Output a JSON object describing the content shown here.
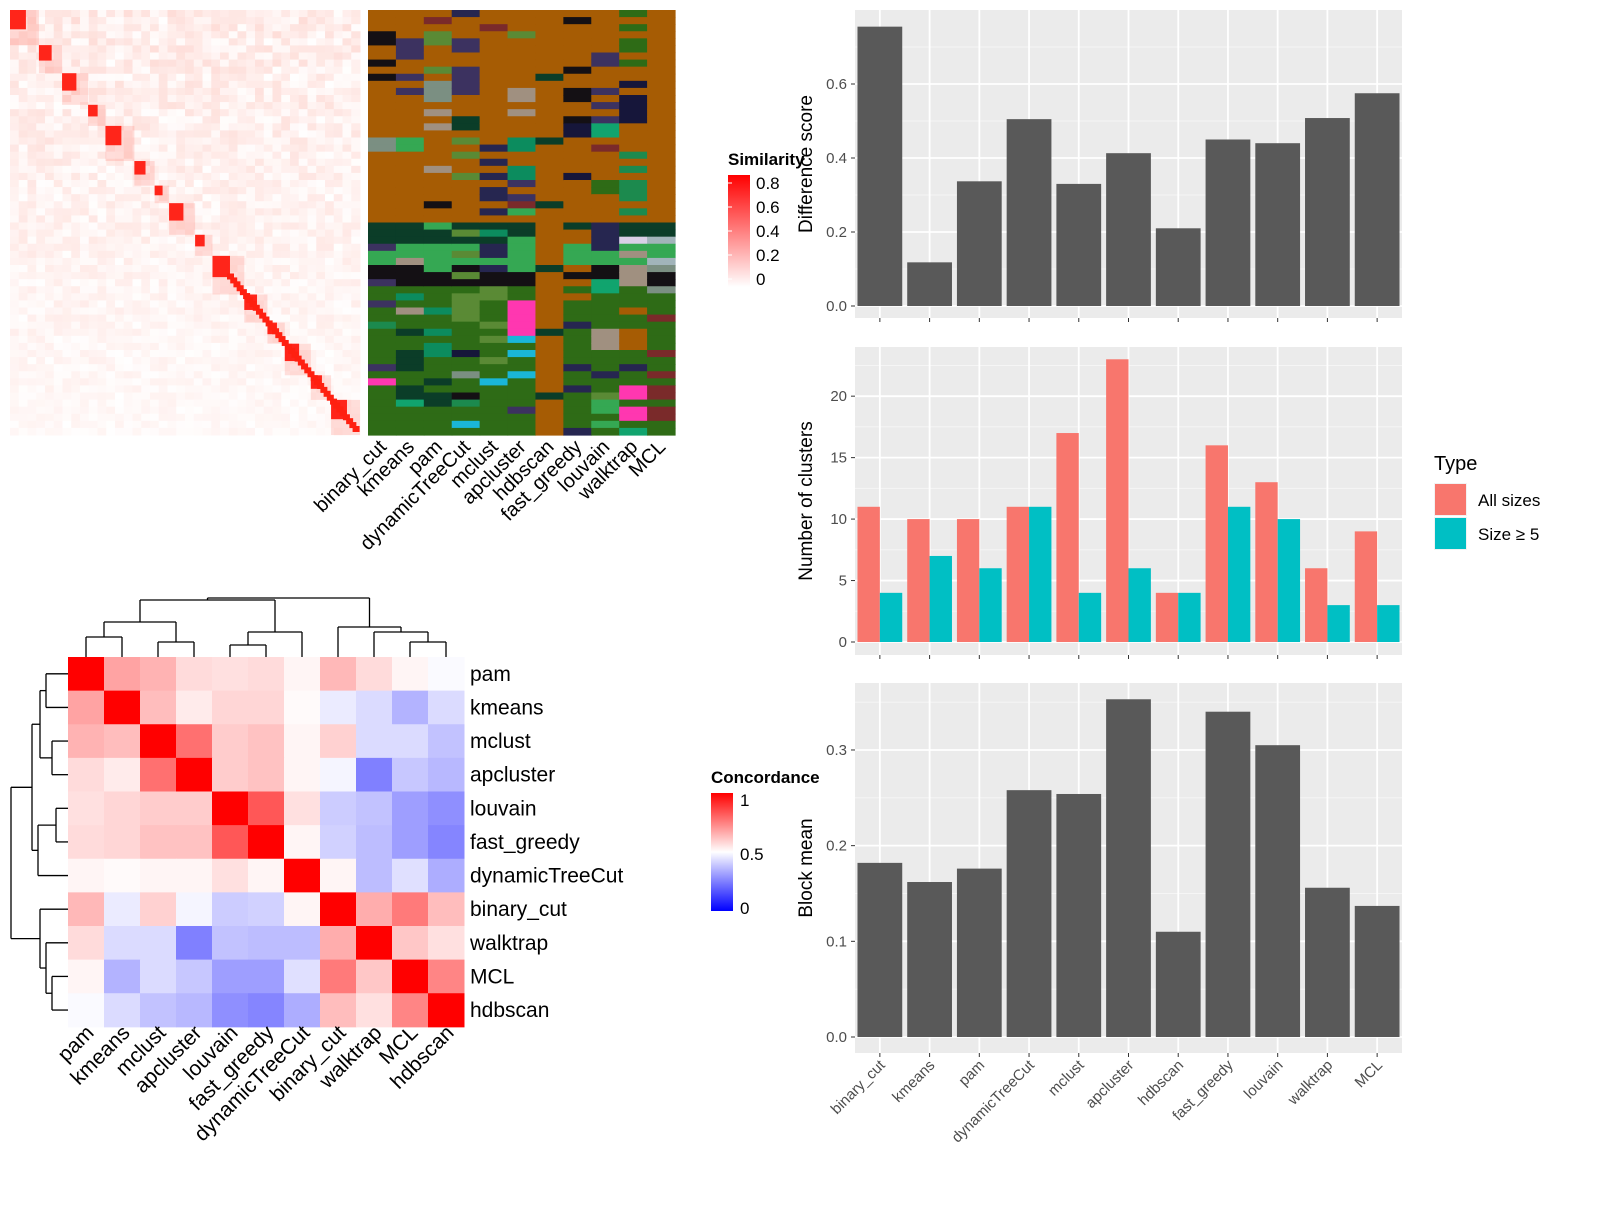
{
  "methods_bar_order": [
    "binary_cut",
    "kmeans",
    "pam",
    "dynamicTreeCut",
    "mclust",
    "apcluster",
    "hdbscan",
    "fast_greedy",
    "louvain",
    "walktrap",
    "MCL"
  ],
  "methods_heat_order": [
    "pam",
    "kmeans",
    "mclust",
    "apcluster",
    "louvain",
    "fast_greedy",
    "dynamicTreeCut",
    "binary_cut",
    "walktrap",
    "MCL",
    "hdbscan"
  ],
  "legend_similarity": {
    "title": "Similarity",
    "ticks": [
      "0.8",
      "0.6",
      "0.4",
      "0.2",
      "0"
    ]
  },
  "legend_concordance": {
    "title": "Concordance",
    "ticks": [
      "1",
      "0.5",
      "0"
    ]
  },
  "legend_type": {
    "title": "Type",
    "entries": [
      "All sizes",
      "Size ≥ 5"
    ],
    "colors": [
      "#F8766D",
      "#00BFC4"
    ]
  },
  "chart_data": [
    {
      "type": "heatmap",
      "title": "",
      "description": "term similarity matrix",
      "n_terms": 120,
      "color_scale": {
        "min": 0,
        "max": 0.8,
        "low": "#ffffff",
        "high": "#ff0000"
      }
    },
    {
      "type": "heatmap",
      "title": "",
      "description": "cluster assignment per method",
      "columns": [
        "binary_cut",
        "kmeans",
        "pam",
        "dynamicTreeCut",
        "mclust",
        "apcluster",
        "hdbscan",
        "fast_greedy",
        "louvain",
        "walktrap",
        "MCL"
      ]
    },
    {
      "type": "heatmap",
      "title": "",
      "rows": [
        "pam",
        "kmeans",
        "mclust",
        "apcluster",
        "louvain",
        "fast_greedy",
        "dynamicTreeCut",
        "binary_cut",
        "walktrap",
        "MCL",
        "hdbscan"
      ],
      "columns": [
        "pam",
        "kmeans",
        "mclust",
        "apcluster",
        "louvain",
        "fast_greedy",
        "dynamicTreeCut",
        "binary_cut",
        "walktrap",
        "MCL",
        "hdbscan"
      ],
      "values": [
        [
          1.0,
          0.68,
          0.65,
          0.57,
          0.56,
          0.57,
          0.52,
          0.64,
          0.57,
          0.52,
          0.49
        ],
        [
          0.68,
          1.0,
          0.63,
          0.54,
          0.58,
          0.58,
          0.51,
          0.46,
          0.43,
          0.35,
          0.43
        ],
        [
          0.65,
          0.63,
          1.0,
          0.78,
          0.6,
          0.62,
          0.52,
          0.59,
          0.43,
          0.43,
          0.38
        ],
        [
          0.57,
          0.54,
          0.78,
          1.0,
          0.6,
          0.62,
          0.52,
          0.48,
          0.25,
          0.39,
          0.36
        ],
        [
          0.56,
          0.58,
          0.6,
          0.6,
          1.0,
          0.83,
          0.56,
          0.4,
          0.38,
          0.31,
          0.28
        ],
        [
          0.57,
          0.58,
          0.62,
          0.62,
          0.83,
          1.0,
          0.52,
          0.41,
          0.37,
          0.31,
          0.26
        ],
        [
          0.52,
          0.51,
          0.52,
          0.52,
          0.56,
          0.52,
          1.0,
          0.52,
          0.37,
          0.44,
          0.34
        ],
        [
          0.64,
          0.46,
          0.59,
          0.48,
          0.4,
          0.41,
          0.52,
          1.0,
          0.66,
          0.76,
          0.63
        ],
        [
          0.57,
          0.43,
          0.43,
          0.25,
          0.38,
          0.37,
          0.37,
          0.66,
          1.0,
          0.61,
          0.56
        ],
        [
          0.52,
          0.35,
          0.43,
          0.39,
          0.31,
          0.31,
          0.44,
          0.76,
          0.61,
          1.0,
          0.74
        ],
        [
          0.49,
          0.43,
          0.38,
          0.36,
          0.28,
          0.26,
          0.34,
          0.63,
          0.56,
          0.74,
          1.0
        ]
      ],
      "color_scale": {
        "min": 0,
        "mid": 0.5,
        "max": 1,
        "low": "#0000ff",
        "midcolor": "#ffffff",
        "high": "#ff0000"
      }
    },
    {
      "type": "bar",
      "categories": [
        "binary_cut",
        "kmeans",
        "pam",
        "dynamicTreeCut",
        "mclust",
        "apcluster",
        "hdbscan",
        "fast_greedy",
        "louvain",
        "walktrap",
        "MCL"
      ],
      "values": [
        0.755,
        0.118,
        0.337,
        0.505,
        0.33,
        0.413,
        0.21,
        0.45,
        0.44,
        0.508,
        0.575
      ],
      "xlabel": "",
      "ylabel": "Difference score",
      "ylim": [
        0,
        0.8
      ],
      "yticks": [
        0.0,
        0.2,
        0.4,
        0.6
      ],
      "grid": true
    },
    {
      "type": "bar",
      "categories": [
        "binary_cut",
        "kmeans",
        "pam",
        "dynamicTreeCut",
        "mclust",
        "apcluster",
        "hdbscan",
        "fast_greedy",
        "louvain",
        "walktrap",
        "MCL"
      ],
      "series": [
        {
          "name": "All sizes",
          "values": [
            11,
            10,
            10,
            11,
            17,
            23,
            4,
            16,
            13,
            6,
            9
          ]
        },
        {
          "name": "Size ≥ 5",
          "values": [
            4,
            7,
            6,
            11,
            4,
            6,
            4,
            11,
            10,
            3,
            3
          ]
        }
      ],
      "xlabel": "",
      "ylabel": "Number of clusters",
      "ylim": [
        0,
        24
      ],
      "yticks": [
        0,
        5,
        10,
        15,
        20
      ],
      "legend": "right",
      "grid": true
    },
    {
      "type": "bar",
      "categories": [
        "binary_cut",
        "kmeans",
        "pam",
        "dynamicTreeCut",
        "mclust",
        "apcluster",
        "hdbscan",
        "fast_greedy",
        "louvain",
        "walktrap",
        "MCL"
      ],
      "values": [
        0.182,
        0.162,
        0.176,
        0.258,
        0.254,
        0.353,
        0.11,
        0.34,
        0.305,
        0.156,
        0.137
      ],
      "xlabel": "",
      "ylabel": "Block mean",
      "ylim": [
        0,
        0.37
      ],
      "yticks": [
        0.0,
        0.1,
        0.2,
        0.3
      ],
      "grid": true
    }
  ]
}
